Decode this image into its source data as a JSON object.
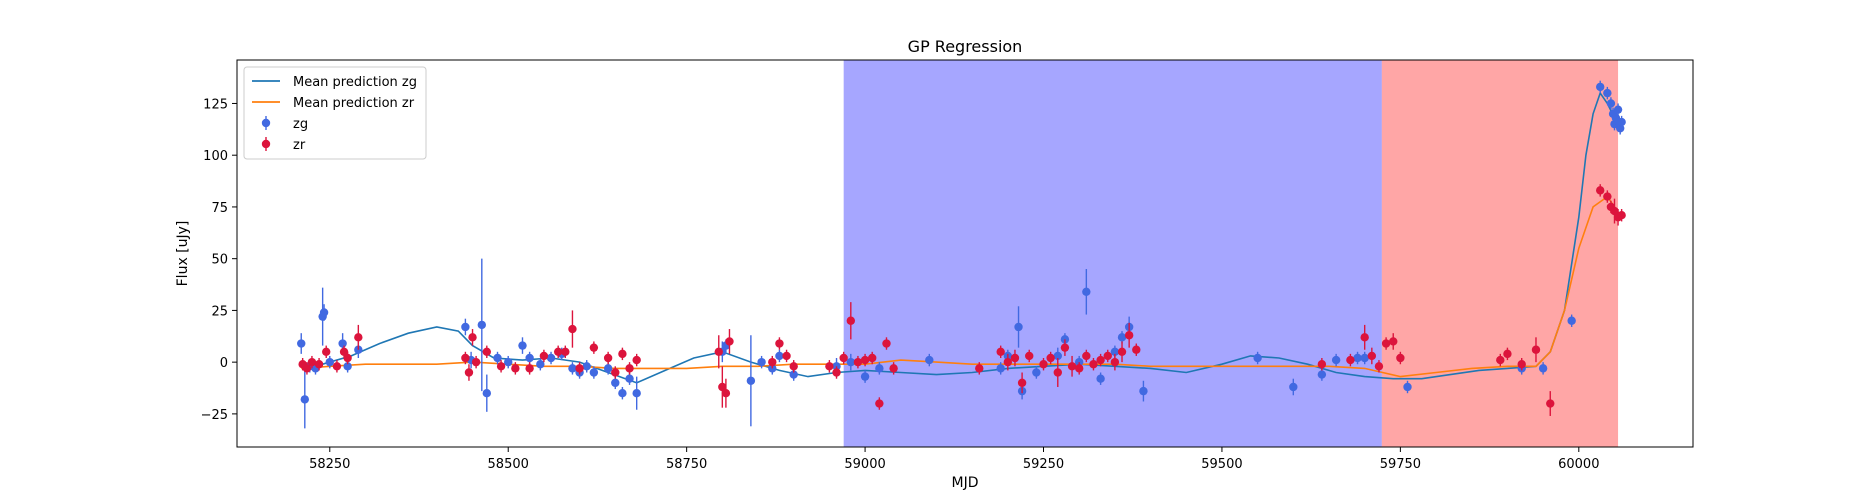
{
  "chart_data": {
    "type": "scatter",
    "title": "GP Regression",
    "xlabel": "MJD",
    "ylabel": "Flux [uJy]",
    "xlim": [
      58120,
      60160
    ],
    "ylim": [
      -41,
      146
    ],
    "x_ticks": [
      58250,
      58500,
      58750,
      59000,
      59250,
      59500,
      59750,
      60000
    ],
    "y_ticks": [
      -25,
      0,
      25,
      50,
      75,
      100,
      125
    ],
    "grid": false,
    "legend_position": "top-left",
    "shaded_regions": [
      {
        "x0": 58970,
        "x1": 59724,
        "color": "#0000ff",
        "opacity": 0.35
      },
      {
        "x0": 59724,
        "x1": 60050,
        "color": "#ff0000",
        "opacity": 0.35
      },
      {
        "x0": 60050,
        "x1": 60055,
        "color": "#ff0000",
        "opacity": 0.35
      }
    ],
    "series": [
      {
        "name": "Mean prediction zg",
        "kind": "line",
        "color": "#1f77b4",
        "x": [
          58210,
          58240,
          58280,
          58320,
          58360,
          58400,
          58430,
          58450,
          58480,
          58520,
          58560,
          58600,
          58640,
          58680,
          58720,
          58760,
          58800,
          58840,
          58880,
          58920,
          58960,
          59000,
          59050,
          59100,
          59150,
          59200,
          59250,
          59300,
          59350,
          59400,
          59450,
          59500,
          59540,
          59580,
          59620,
          59660,
          59700,
          59740,
          59780,
          59820,
          59860,
          59900,
          59940,
          59960,
          59980,
          60000,
          60010,
          60020,
          60030,
          60040,
          60050
        ],
        "y": [
          -2,
          -1,
          3,
          9,
          14,
          17,
          15,
          8,
          2,
          1,
          2,
          0,
          -5,
          -10,
          -4,
          2,
          5,
          0,
          -4,
          -7,
          -5,
          -4,
          -5,
          -6,
          -5,
          -3,
          -2,
          -1,
          -2,
          -3,
          -5,
          -1,
          3,
          2,
          -1,
          -5,
          -7,
          -8,
          -8,
          -6,
          -4,
          -3,
          -2,
          5,
          25,
          70,
          100,
          120,
          130,
          125,
          118
        ]
      },
      {
        "name": "Mean prediction zr",
        "kind": "line",
        "color": "#ff7f0e",
        "x": [
          58210,
          58250,
          58300,
          58350,
          58400,
          58450,
          58500,
          58550,
          58600,
          58650,
          58700,
          58750,
          58800,
          58850,
          58900,
          58950,
          59000,
          59050,
          59100,
          59150,
          59200,
          59250,
          59300,
          59350,
          59400,
          59450,
          59500,
          59550,
          59600,
          59650,
          59700,
          59750,
          59800,
          59850,
          59900,
          59940,
          59960,
          59980,
          60000,
          60020,
          60040,
          60060
        ],
        "y": [
          -3,
          -2,
          -1,
          -1,
          -1,
          0,
          -1,
          -2,
          -2,
          -3,
          -3,
          -3,
          -2,
          -2,
          -1,
          -1,
          -1,
          1,
          0,
          -1,
          -1,
          -1,
          -1,
          -1,
          -2,
          -2,
          -2,
          -2,
          -2,
          -2,
          -3,
          -7,
          -5,
          -3,
          -2,
          -2,
          5,
          25,
          55,
          75,
          80,
          70
        ]
      },
      {
        "name": "zg",
        "kind": "errorbar",
        "color": "#4169e1",
        "x": [
          58210,
          58215,
          58222,
          58230,
          58240,
          58242,
          58250,
          58268,
          58275,
          58290,
          58440,
          58448,
          58463,
          58470,
          58485,
          58500,
          58520,
          58530,
          58545,
          58560,
          58575,
          58590,
          58600,
          58610,
          58620,
          58640,
          58650,
          58660,
          58670,
          58680,
          58800,
          58805,
          58840,
          58855,
          58870,
          58880,
          58900,
          58960,
          58980,
          59000,
          59020,
          59090,
          59190,
          59200,
          59215,
          59220,
          59240,
          59270,
          59280,
          59300,
          59310,
          59330,
          59350,
          59360,
          59370,
          59390,
          59550,
          59600,
          59640,
          59660,
          59690,
          59700,
          59760,
          59920,
          59950,
          59990,
          60030,
          60040,
          60045,
          60048,
          60050,
          60052,
          60055,
          60058,
          60060
        ],
        "y": [
          9,
          -18,
          -2,
          -3,
          22,
          24,
          0,
          9,
          -2,
          6,
          17,
          1,
          18,
          -15,
          2,
          0,
          8,
          2,
          -1,
          2,
          4,
          -3,
          -5,
          -2,
          -5,
          -3,
          -10,
          -15,
          -8,
          -15,
          5,
          8,
          -9,
          0,
          -3,
          3,
          -6,
          -2,
          0,
          -7,
          -3,
          1,
          -3,
          3,
          17,
          -14,
          -5,
          3,
          11,
          0,
          34,
          -8,
          5,
          12,
          17,
          -14,
          2,
          -12,
          -6,
          1,
          2,
          2,
          -12,
          -3,
          -3,
          20,
          133,
          130,
          125,
          120,
          115,
          118,
          122,
          113,
          116
        ],
        "err": [
          5,
          14,
          3,
          3,
          14,
          4,
          3,
          5,
          3,
          4,
          4,
          4,
          32,
          9,
          3,
          3,
          4,
          3,
          3,
          3,
          3,
          3,
          3,
          3,
          3,
          3,
          3,
          3,
          3,
          8,
          5,
          3,
          22,
          3,
          3,
          3,
          3,
          4,
          4,
          3,
          3,
          3,
          3,
          3,
          10,
          4,
          3,
          4,
          3,
          3,
          11,
          3,
          3,
          3,
          5,
          5,
          3,
          4,
          3,
          3,
          3,
          3,
          3,
          3,
          3,
          3,
          3,
          3,
          3,
          3,
          3,
          3,
          3,
          3,
          3
        ]
      },
      {
        "name": "zr",
        "kind": "errorbar",
        "color": "#dc143c",
        "x": [
          58212,
          58218,
          58225,
          58235,
          58245,
          58260,
          58270,
          58275,
          58290,
          58440,
          58445,
          58450,
          58455,
          58470,
          58490,
          58510,
          58530,
          58550,
          58570,
          58580,
          58590,
          58600,
          58620,
          58640,
          58650,
          58660,
          58670,
          58680,
          58795,
          58800,
          58805,
          58810,
          58870,
          58880,
          58890,
          58900,
          58950,
          58960,
          58970,
          58980,
          58990,
          59000,
          59010,
          59020,
          59030,
          59040,
          59160,
          59190,
          59200,
          59210,
          59220,
          59230,
          59250,
          59260,
          59270,
          59280,
          59290,
          59300,
          59310,
          59320,
          59330,
          59340,
          59350,
          59360,
          59370,
          59380,
          59640,
          59680,
          59700,
          59710,
          59720,
          59730,
          59740,
          59750,
          59890,
          59900,
          59920,
          59940,
          59960,
          60030,
          60040,
          60045,
          60050,
          60055,
          60060
        ],
        "y": [
          -1,
          -3,
          0,
          -1,
          5,
          -2,
          5,
          2,
          12,
          2,
          -5,
          12,
          0,
          5,
          -2,
          -3,
          -3,
          3,
          5,
          5,
          16,
          -3,
          7,
          2,
          -5,
          4,
          -3,
          1,
          5,
          -12,
          -15,
          10,
          0,
          9,
          3,
          -2,
          -2,
          -5,
          2,
          20,
          0,
          1,
          2,
          -20,
          9,
          -3,
          -3,
          5,
          0,
          2,
          -10,
          3,
          -1,
          2,
          -5,
          7,
          -2,
          -3,
          3,
          -1,
          1,
          3,
          0,
          5,
          13,
          6,
          -1,
          1,
          12,
          3,
          -2,
          9,
          10,
          2,
          1,
          4,
          -1,
          6,
          -20,
          83,
          80,
          75,
          73,
          70,
          71
        ],
        "err": [
          3,
          3,
          3,
          3,
          3,
          3,
          3,
          3,
          6,
          3,
          4,
          4,
          3,
          3,
          3,
          3,
          3,
          3,
          3,
          3,
          9,
          3,
          3,
          3,
          3,
          3,
          3,
          3,
          8,
          10,
          7,
          6,
          3,
          3,
          3,
          3,
          3,
          3,
          3,
          9,
          3,
          3,
          3,
          3,
          3,
          3,
          3,
          3,
          4,
          4,
          5,
          3,
          3,
          3,
          7,
          4,
          5,
          3,
          3,
          3,
          3,
          3,
          4,
          5,
          6,
          3,
          3,
          3,
          6,
          4,
          3,
          3,
          4,
          3,
          3,
          3,
          3,
          6,
          6,
          3,
          3,
          3,
          6,
          4,
          3
        ]
      }
    ]
  }
}
